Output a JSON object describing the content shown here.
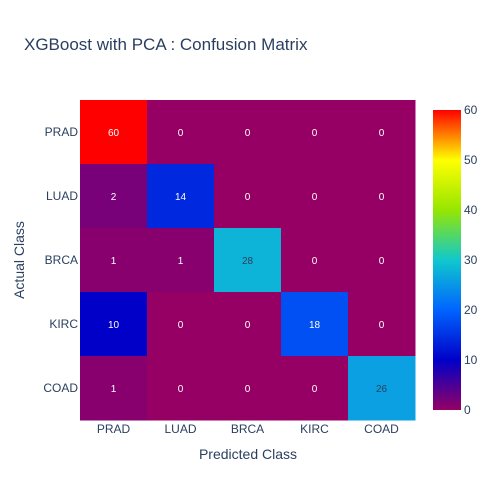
{
  "chart_data": {
    "type": "heatmap",
    "title": "XGBoost with PCA : Confusion Matrix",
    "xlabel": "Predicted Class",
    "ylabel": "Actual Class",
    "x_categories": [
      "PRAD",
      "LUAD",
      "BRCA",
      "KIRC",
      "COAD"
    ],
    "y_categories": [
      "PRAD",
      "LUAD",
      "BRCA",
      "KIRC",
      "COAD"
    ],
    "z": [
      [
        60,
        0,
        0,
        0,
        0
      ],
      [
        2,
        14,
        0,
        0,
        0
      ],
      [
        1,
        1,
        28,
        0,
        0
      ],
      [
        10,
        0,
        0,
        18,
        0
      ],
      [
        1,
        0,
        0,
        0,
        26
      ]
    ],
    "zlim": [
      0,
      60
    ],
    "colorscale": "rainbow",
    "colorbar_ticks": [
      0,
      10,
      20,
      30,
      40,
      50,
      60
    ],
    "colorbar_ticklabels": [
      "0",
      "10",
      "20",
      "30",
      "40",
      "50",
      "60"
    ],
    "show_cell_labels": true,
    "grid": false,
    "legend": "colorbar-right"
  }
}
